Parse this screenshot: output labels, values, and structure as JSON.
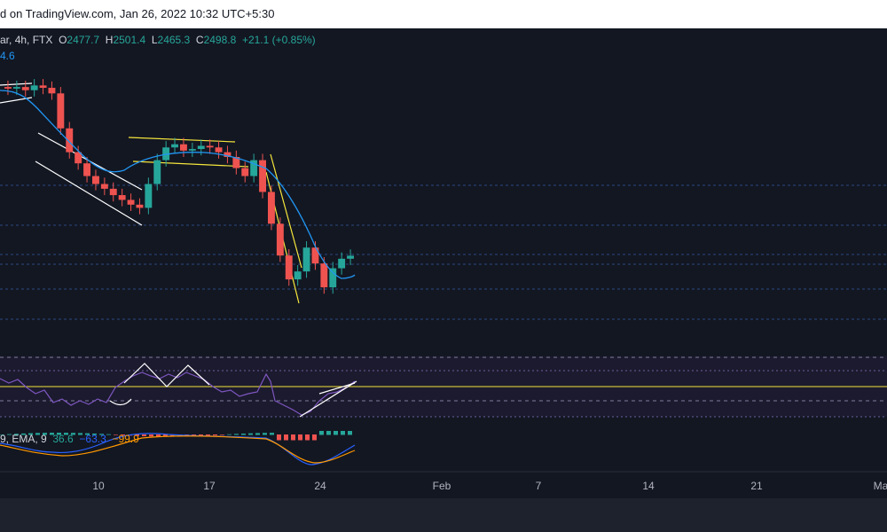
{
  "header": {
    "text": "d on TradingView.com, Jan 26, 2022 10:32 UTC+5:30"
  },
  "symbol": {
    "name_fragment": "ar",
    "interval": "4h",
    "exchange": "FTX",
    "open_label": "O",
    "open": "2477.7",
    "high_label": "H",
    "high": "2501.4",
    "low_label": "L",
    "low": "2465.3",
    "close_label": "C",
    "close": "2498.8",
    "change": "+21.1 (+0.85%)"
  },
  "ema_value": "4.6",
  "macd": {
    "label": "9, EMA, 9",
    "hist": "36.6",
    "macd": "−63.3",
    "signal": "−99.9"
  },
  "colors": {
    "background": "#131722",
    "up": "#26a69a",
    "down": "#ef5350",
    "ema": "#2196f3",
    "rsi": "#7e57c2",
    "trend_yellow": "#f5e63c",
    "macd_orange": "#ff9800"
  },
  "chart_data": {
    "type": "candlestick",
    "x_ticks": [
      "10",
      "17",
      "24",
      "Feb",
      "7",
      "14",
      "21",
      "Ma"
    ],
    "last_close": 2498.8,
    "candles_close_approx": [
      3550,
      3560,
      3540,
      3570,
      3555,
      3520,
      3300,
      3150,
      3080,
      3000,
      2950,
      2920,
      2880,
      2850,
      2820,
      2800,
      2950,
      3100,
      3180,
      3200,
      3160,
      3170,
      3190,
      3180,
      3150,
      3120,
      3050,
      3000,
      3100,
      2900,
      2700,
      2500,
      2350,
      2400,
      2550,
      2450,
      2300,
      2420,
      2480,
      2498.8
    ],
    "panes": [
      "price",
      "rsi",
      "macd"
    ]
  }
}
